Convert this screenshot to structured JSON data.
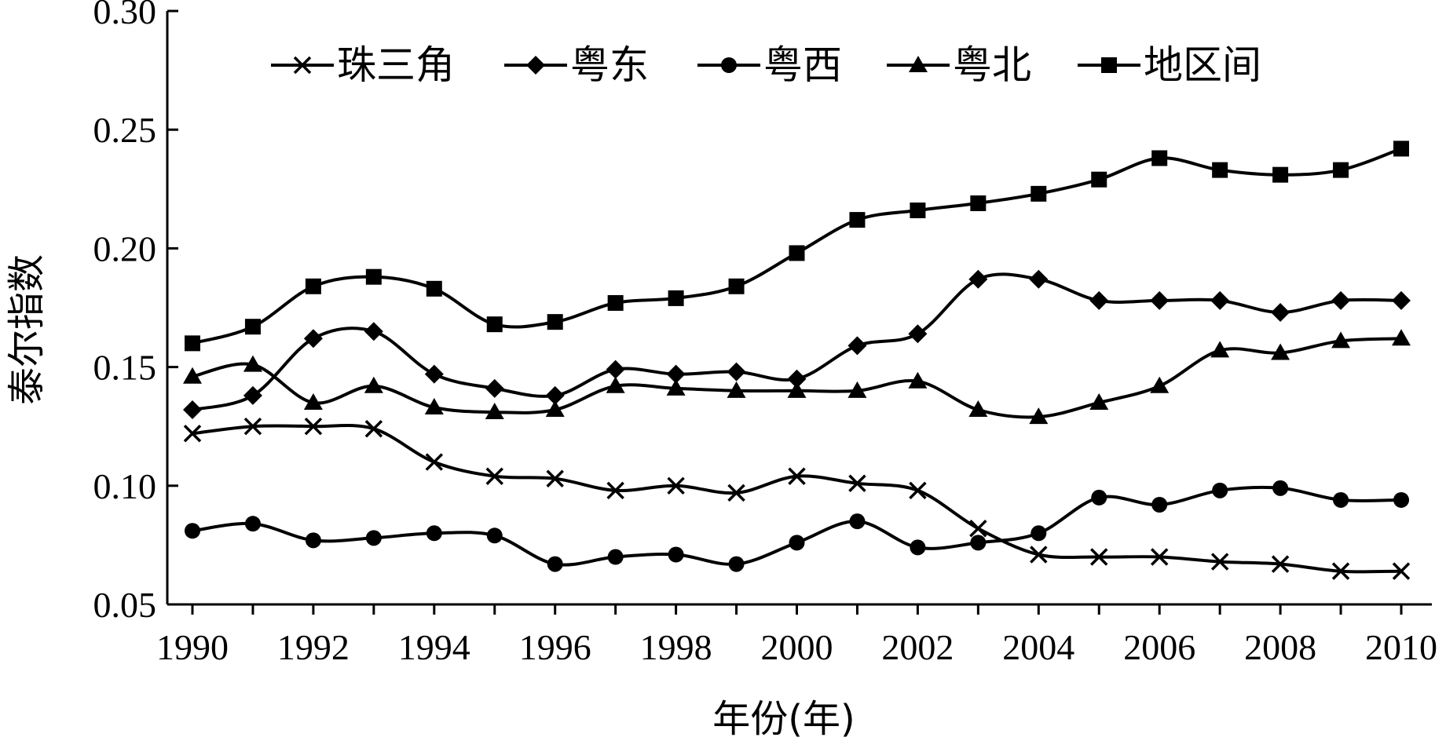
{
  "chart_data": {
    "type": "line",
    "title": "",
    "xlabel": "年份(年)",
    "ylabel": "泰尔指数",
    "xlim": [
      1990,
      2010
    ],
    "ylim": [
      0.05,
      0.3
    ],
    "x": [
      1990,
      1991,
      1992,
      1993,
      1994,
      1995,
      1996,
      1997,
      1998,
      1999,
      2000,
      2001,
      2002,
      2003,
      2004,
      2005,
      2006,
      2007,
      2008,
      2009,
      2010
    ],
    "x_ticks": [
      "1990",
      "1992",
      "1994",
      "1996",
      "1998",
      "2000",
      "2002",
      "2004",
      "2006",
      "2008",
      "2010"
    ],
    "y_ticks": [
      "0.05",
      "0.10",
      "0.15",
      "0.20",
      "0.25",
      "0.30"
    ],
    "legend_position": "top",
    "grid": false,
    "series": [
      {
        "name": "珠三角",
        "marker": "x",
        "values": [
          0.122,
          0.125,
          0.125,
          0.124,
          0.11,
          0.104,
          0.103,
          0.098,
          0.1,
          0.097,
          0.104,
          0.101,
          0.098,
          0.082,
          0.071,
          0.07,
          0.07,
          0.068,
          0.067,
          0.064,
          0.064
        ]
      },
      {
        "name": "粤东",
        "marker": "diamond",
        "values": [
          0.132,
          0.138,
          0.162,
          0.165,
          0.147,
          0.141,
          0.138,
          0.149,
          0.147,
          0.148,
          0.145,
          0.159,
          0.164,
          0.187,
          0.187,
          0.178,
          0.178,
          0.178,
          0.173,
          0.178,
          0.178
        ]
      },
      {
        "name": "粤西",
        "marker": "circle",
        "values": [
          0.081,
          0.084,
          0.077,
          0.078,
          0.08,
          0.079,
          0.067,
          0.07,
          0.071,
          0.067,
          0.076,
          0.085,
          0.074,
          0.076,
          0.08,
          0.095,
          0.092,
          0.098,
          0.099,
          0.094,
          0.094
        ]
      },
      {
        "name": "粤北",
        "marker": "triangle",
        "values": [
          0.146,
          0.151,
          0.135,
          0.142,
          0.133,
          0.131,
          0.132,
          0.142,
          0.141,
          0.14,
          0.14,
          0.14,
          0.144,
          0.132,
          0.129,
          0.135,
          0.142,
          0.157,
          0.156,
          0.161,
          0.162
        ]
      },
      {
        "name": "地区间",
        "marker": "square",
        "values": [
          0.16,
          0.167,
          0.184,
          0.188,
          0.183,
          0.168,
          0.169,
          0.177,
          0.179,
          0.184,
          0.198,
          0.212,
          0.216,
          0.219,
          0.223,
          0.229,
          0.238,
          0.233,
          0.231,
          0.233,
          0.242
        ]
      }
    ]
  }
}
